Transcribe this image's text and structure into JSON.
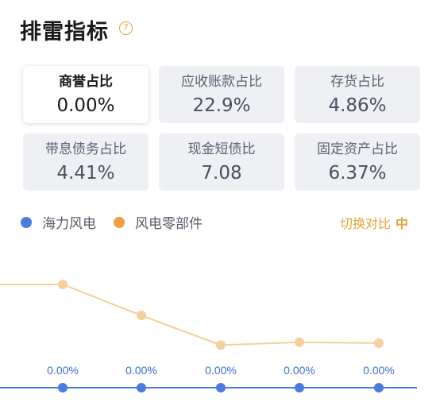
{
  "header": {
    "title": "排雷指标",
    "help_icon": "?"
  },
  "metrics": [
    {
      "label": "商誉占比",
      "value": "0.00%",
      "active": true
    },
    {
      "label": "应收账款占比",
      "value": "22.9%",
      "active": false
    },
    {
      "label": "存货占比",
      "value": "4.86%",
      "active": false
    },
    {
      "label": "带息债务占比",
      "value": "4.41%",
      "active": false
    },
    {
      "label": "现金短债比",
      "value": "7.08",
      "active": false
    },
    {
      "label": "固定资产占比",
      "value": "6.37%",
      "active": false
    }
  ],
  "legend": [
    {
      "name": "海力风电",
      "color": "#4a7be0"
    },
    {
      "name": "风电零部件",
      "color": "#f0a040"
    }
  ],
  "switch_button": {
    "label": "切换对比",
    "icon": "中"
  },
  "chart_data": {
    "type": "line",
    "series": [
      {
        "name": "风电零部件",
        "color": "#f5cf9e",
        "values": [
          null,
          3.3,
          2.2,
          1.15,
          1.25,
          1.22
        ]
      },
      {
        "name": "海力风电",
        "color": "#4a7be0",
        "values": [
          0,
          0,
          0,
          0,
          0,
          0
        ],
        "data_labels": [
          "0.00%",
          "0.00%",
          "0.00%",
          "0.00%",
          "0.00%",
          "0.00%"
        ]
      }
    ]
  }
}
